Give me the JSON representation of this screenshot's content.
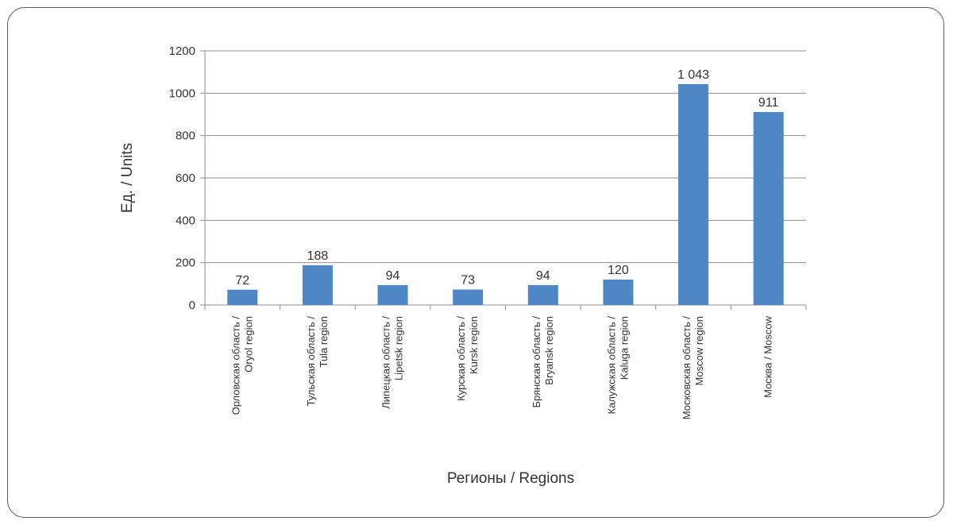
{
  "chart_data": {
    "type": "bar",
    "categories": [
      [
        "Орловская область /",
        "Oryol region"
      ],
      [
        "Тульская область /",
        "Tula region"
      ],
      [
        "Липецкая область /",
        "Lipetsk region"
      ],
      [
        "Курская область /",
        "Kursk region"
      ],
      [
        "Брянская область /",
        "Bryansk region"
      ],
      [
        "Калужская область /",
        "Kaluga region"
      ],
      [
        "Московская область /",
        "Moscow region"
      ],
      [
        "Москва / Moscow"
      ]
    ],
    "values": [
      72,
      188,
      94,
      73,
      94,
      120,
      1043,
      911
    ],
    "data_labels": [
      "72",
      "188",
      "94",
      "73",
      "94",
      "120",
      "1 043",
      "911"
    ],
    "ylim": [
      0,
      1200
    ],
    "yticks": [
      0,
      200,
      400,
      600,
      800,
      1000,
      1200
    ],
    "ylabel": "Ед. / Units",
    "xlabel": "Регионы / Regions",
    "grid": true,
    "colors": {
      "bar": "#4f86c6",
      "grid": "#8c8c8c",
      "axis": "#8c8c8c"
    }
  }
}
